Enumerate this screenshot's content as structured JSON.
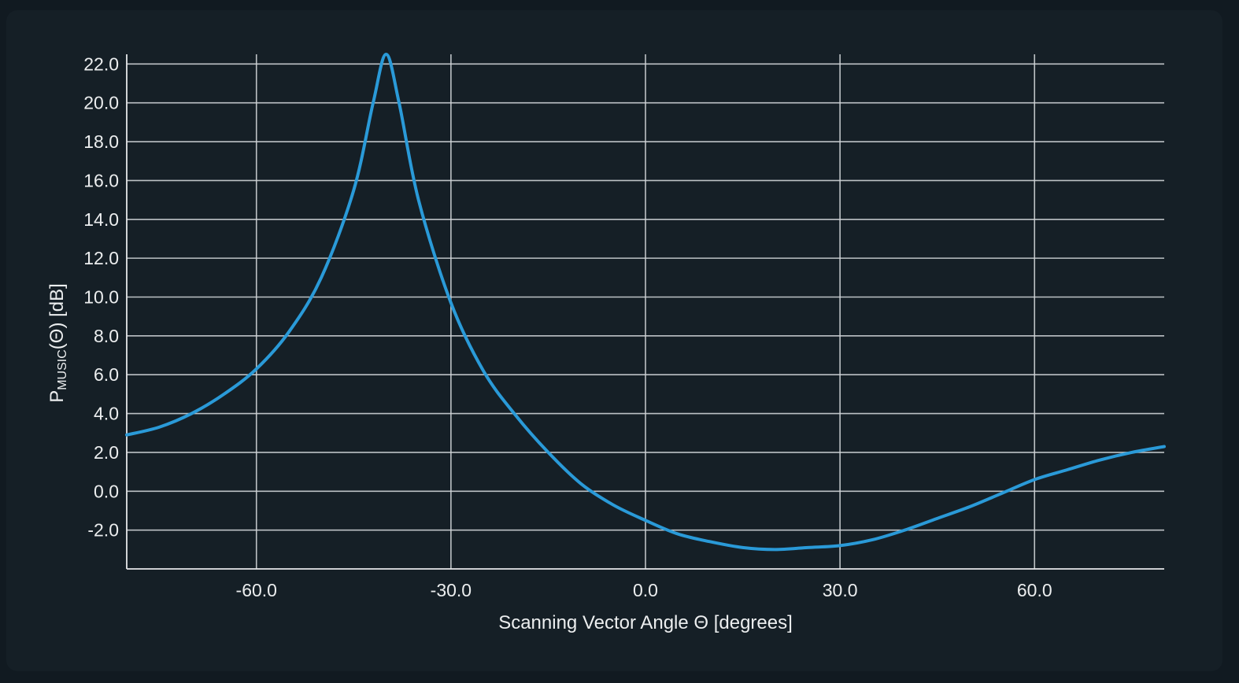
{
  "chart_data": {
    "type": "line",
    "title": "",
    "xlabel": "Scanning Vector Angle Θ [degrees]",
    "ylabel": {
      "prefix": "P",
      "subscript": "MUSIC",
      "suffix": "(Θ) [dB]"
    },
    "xlim": [
      -80,
      80
    ],
    "ylim": [
      -4,
      22.5
    ],
    "x_ticks": [
      -60,
      -30,
      0,
      30,
      60
    ],
    "x_tick_labels": [
      "-60.0",
      "-30.0",
      "0.0",
      "30.0",
      "60.0"
    ],
    "y_ticks": [
      -2,
      0,
      2,
      4,
      6,
      8,
      10,
      12,
      14,
      16,
      18,
      20,
      22
    ],
    "y_tick_labels": [
      "-2.0",
      "0.0",
      "2.0",
      "4.0",
      "6.0",
      "8.0",
      "10.0",
      "12.0",
      "14.0",
      "16.0",
      "18.0",
      "20.0",
      "22.0"
    ],
    "grid": true,
    "legend": "none",
    "series": [
      {
        "color": "#2a9ad8",
        "x": [
          -80,
          -75,
          -70,
          -65,
          -60,
          -55,
          -50,
          -45,
          -42,
          -40,
          -38,
          -35,
          -30,
          -25,
          -20,
          -15,
          -10,
          -5,
          0,
          5,
          10,
          15,
          20,
          25,
          30,
          35,
          40,
          45,
          50,
          55,
          60,
          65,
          70,
          75,
          80
        ],
        "y": [
          2.9,
          3.3,
          4.0,
          5.0,
          6.3,
          8.2,
          11.0,
          15.5,
          20.0,
          22.5,
          20.0,
          15.0,
          9.7,
          6.2,
          3.9,
          2.0,
          0.4,
          -0.7,
          -1.5,
          -2.2,
          -2.6,
          -2.9,
          -3.0,
          -2.9,
          -2.8,
          -2.5,
          -2.0,
          -1.4,
          -0.8,
          -0.1,
          0.6,
          1.1,
          1.6,
          2.0,
          2.3
        ]
      }
    ]
  }
}
